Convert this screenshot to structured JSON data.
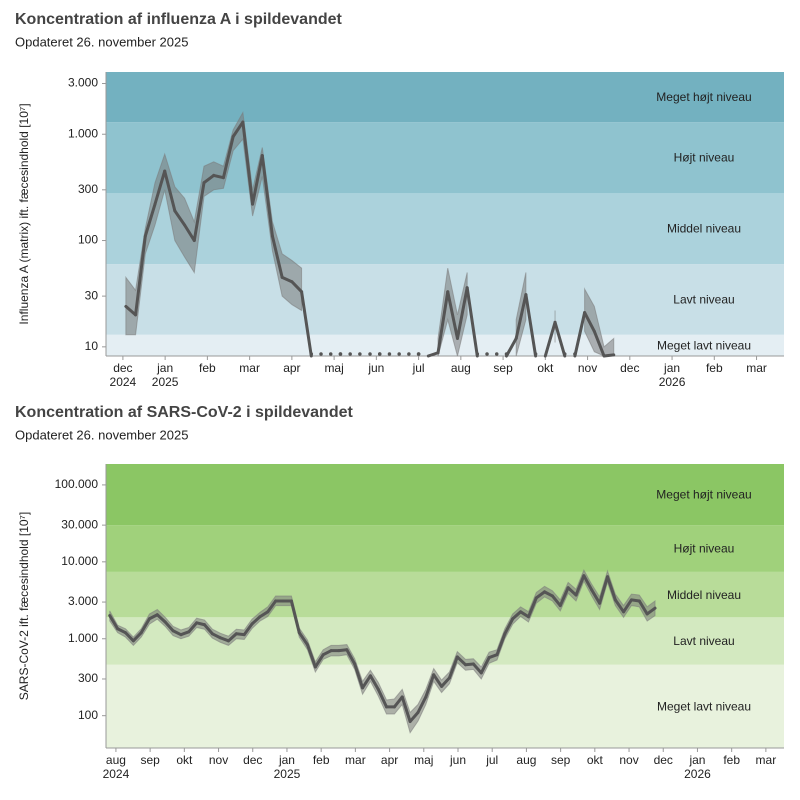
{
  "chart_data": [
    {
      "type": "line",
      "title": "Koncentration af influenza A i spildevandet",
      "subtitle": "Opdateret 26. november 2025",
      "ylabel": "Influenza A (matrix) ift. fæcesindhold [10⁷]",
      "log_y": true,
      "ylim": [
        8.2,
        3850
      ],
      "yticks": [
        10,
        30,
        100,
        300,
        {
          "value": 1000,
          "label": "1.000"
        },
        {
          "value": 3000,
          "label": "3.000"
        }
      ],
      "xlim": [
        -0.4,
        15.65
      ],
      "xticks": [
        {
          "value": 0,
          "label": "dec",
          "sublabel": "2024"
        },
        {
          "value": 1,
          "label": "jan",
          "sublabel": "2025"
        },
        {
          "value": 2,
          "label": "feb"
        },
        {
          "value": 3,
          "label": "mar"
        },
        {
          "value": 4,
          "label": "apr"
        },
        {
          "value": 5,
          "label": "maj"
        },
        {
          "value": 6,
          "label": "jun"
        },
        {
          "value": 7,
          "label": "jul"
        },
        {
          "value": 8,
          "label": "aug"
        },
        {
          "value": 9,
          "label": "sep"
        },
        {
          "value": 10,
          "label": "okt"
        },
        {
          "value": 11,
          "label": "nov"
        },
        {
          "value": 12,
          "label": "dec"
        },
        {
          "value": 13,
          "label": "jan",
          "sublabel": "2026"
        },
        {
          "value": 14,
          "label": "feb"
        },
        {
          "value": 15,
          "label": "mar"
        }
      ],
      "band_limits": [
        13,
        60,
        280,
        1300
      ],
      "bands": [
        {
          "label": "Meget lavt niveau",
          "color": "#e4eef3"
        },
        {
          "label": "Lavt niveau",
          "color": "#c8dfe7"
        },
        {
          "label": "Middel niveau",
          "color": "#abd2dc"
        },
        {
          "label": "Højt niveau",
          "color": "#8fc3cf"
        },
        {
          "label": "Meget højt niveau",
          "color": "#73b1c0"
        }
      ],
      "x": [
        0.07,
        0.3,
        0.53,
        0.76,
        0.99,
        1.23,
        1.46,
        1.69,
        1.92,
        2.15,
        2.38,
        2.61,
        2.84,
        3.07,
        3.3,
        3.54,
        3.77,
        4.0,
        4.23,
        4.46,
        4.69,
        4.92,
        5.15,
        5.38,
        5.61,
        5.85,
        6.08,
        6.31,
        6.54,
        6.77,
        7.0,
        7.23,
        7.46,
        7.69,
        7.92,
        8.15,
        8.39,
        8.62,
        8.85,
        9.08,
        9.31,
        9.54,
        9.77,
        10.0,
        10.23,
        10.46,
        10.7,
        10.93,
        11.16,
        11.39,
        11.62
      ],
      "series": [
        {
          "color": "#555555",
          "ci_color": "#7a7a7a",
          "values": [
            24,
            20,
            110,
            220,
            450,
            190,
            140,
            100,
            350,
            410,
            390,
            950,
            1300,
            220,
            630,
            110,
            45,
            41,
            33,
            8.2,
            8.2,
            8.2,
            8.2,
            8.2,
            8.2,
            8.2,
            8.2,
            8.2,
            8.2,
            8.2,
            8.2,
            8.2,
            8.8,
            33,
            12,
            36,
            8.2,
            8.2,
            8.2,
            8.2,
            12,
            31,
            8.2,
            8.2,
            17,
            8.2,
            8.2,
            21,
            14,
            8.2,
            8.4
          ],
          "lower": [
            13,
            13,
            75,
            140,
            300,
            100,
            70,
            50,
            260,
            300,
            310,
            700,
            900,
            170,
            400,
            80,
            30,
            25,
            22,
            null,
            null,
            null,
            null,
            null,
            null,
            null,
            null,
            null,
            null,
            null,
            null,
            null,
            8.2,
            18,
            8.2,
            20,
            null,
            null,
            null,
            null,
            8.2,
            18,
            null,
            null,
            11,
            null,
            null,
            14,
            9,
            8.2,
            8.2
          ],
          "upper": [
            45,
            34,
            130,
            350,
            650,
            320,
            250,
            150,
            500,
            550,
            500,
            1100,
            1600,
            300,
            750,
            150,
            75,
            65,
            55,
            null,
            null,
            null,
            null,
            null,
            null,
            null,
            null,
            null,
            null,
            null,
            null,
            null,
            12,
            55,
            20,
            50,
            null,
            null,
            null,
            null,
            18,
            50,
            null,
            null,
            22,
            null,
            null,
            35,
            24,
            10,
            12
          ]
        }
      ]
    },
    {
      "type": "line",
      "title": "Koncentration af SARS-CoV-2 i spildevandet",
      "subtitle": "Opdateret 26. november 2025",
      "ylabel": "SARS-CoV-2 ift. fæcesindhold [10⁷]",
      "log_y": true,
      "ylim": [
        38,
        187000
      ],
      "yticks": [
        100,
        300,
        {
          "value": 1000,
          "label": "1.000"
        },
        {
          "value": 3000,
          "label": "3.000"
        },
        {
          "value": 10000,
          "label": "10.000"
        },
        {
          "value": 30000,
          "label": "30.000"
        },
        {
          "value": 100000,
          "label": "100.000"
        }
      ],
      "xlim": [
        -0.29,
        19.53
      ],
      "xticks": [
        {
          "value": 0,
          "label": "aug",
          "sublabel": "2024"
        },
        {
          "value": 1,
          "label": "sep"
        },
        {
          "value": 2,
          "label": "okt"
        },
        {
          "value": 3,
          "label": "nov"
        },
        {
          "value": 4,
          "label": "dec"
        },
        {
          "value": 5,
          "label": "jan",
          "sublabel": "2025"
        },
        {
          "value": 6,
          "label": "feb"
        },
        {
          "value": 7,
          "label": "mar"
        },
        {
          "value": 8,
          "label": "apr"
        },
        {
          "value": 9,
          "label": "maj"
        },
        {
          "value": 10,
          "label": "jun"
        },
        {
          "value": 11,
          "label": "jul"
        },
        {
          "value": 12,
          "label": "aug"
        },
        {
          "value": 13,
          "label": "sep"
        },
        {
          "value": 14,
          "label": "okt"
        },
        {
          "value": 15,
          "label": "nov"
        },
        {
          "value": 16,
          "label": "dec"
        },
        {
          "value": 17,
          "label": "jan",
          "sublabel": "2026"
        },
        {
          "value": 18,
          "label": "feb"
        },
        {
          "value": 19,
          "label": "mar"
        }
      ],
      "band_limits": [
        460,
        1900,
        7400,
        30000
      ],
      "bands": [
        {
          "label": "Meget lavt niveau",
          "color": "#e8f2dd"
        },
        {
          "label": "Lavt niveau",
          "color": "#d3e9c0"
        },
        {
          "label": "Middel niveau",
          "color": "#b8dc99"
        },
        {
          "label": "Højt niveau",
          "color": "#a0d17b"
        },
        {
          "label": "Meget højt niveau",
          "color": "#8bc664"
        }
      ],
      "x": [
        -0.18,
        0.05,
        0.28,
        0.51,
        0.74,
        0.98,
        1.21,
        1.44,
        1.67,
        1.9,
        2.13,
        2.36,
        2.59,
        2.82,
        3.05,
        3.29,
        3.52,
        3.75,
        3.98,
        4.21,
        4.44,
        4.67,
        4.9,
        5.13,
        5.36,
        5.6,
        5.83,
        6.06,
        6.29,
        6.52,
        6.75,
        6.98,
        7.21,
        7.44,
        7.67,
        7.91,
        8.14,
        8.37,
        8.6,
        8.83,
        9.06,
        9.29,
        9.52,
        9.75,
        9.98,
        10.22,
        10.45,
        10.68,
        10.91,
        11.14,
        11.37,
        11.6,
        11.83,
        12.06,
        12.29,
        12.53,
        12.76,
        12.99,
        13.22,
        13.45,
        13.68,
        13.91,
        14.14,
        14.37,
        14.6,
        14.84,
        15.07,
        15.3,
        15.53,
        15.76
      ],
      "series": [
        {
          "color": "#555555",
          "ci_color": "#7a7a7a",
          "values": [
            2000,
            1350,
            1200,
            940,
            1200,
            1820,
            2050,
            1650,
            1270,
            1130,
            1230,
            1610,
            1520,
            1160,
            1030,
            940,
            1160,
            1130,
            1560,
            1930,
            2240,
            3100,
            3100,
            3100,
            1200,
            835,
            430,
            620,
            700,
            700,
            720,
            470,
            230,
            330,
            220,
            130,
            130,
            175,
            84,
            110,
            175,
            340,
            240,
            310,
            580,
            460,
            470,
            360,
            570,
            620,
            1160,
            1820,
            2240,
            1930,
            3400,
            4070,
            3600,
            2700,
            4600,
            3700,
            6600,
            4300,
            2900,
            6400,
            3200,
            2240,
            3200,
            3100,
            2100,
            2500
          ],
          "lower": [
            1700,
            1200,
            1050,
            820,
            1050,
            1550,
            1800,
            1450,
            1100,
            1000,
            1080,
            1400,
            1330,
            1020,
            900,
            820,
            1000,
            980,
            1360,
            1700,
            1950,
            2700,
            2700,
            2700,
            1050,
            720,
            370,
            540,
            600,
            600,
            620,
            400,
            190,
            280,
            180,
            105,
            105,
            140,
            60,
            85,
            140,
            280,
            200,
            260,
            490,
            390,
            400,
            300,
            480,
            530,
            1000,
            1550,
            1950,
            1650,
            2900,
            3500,
            3100,
            2300,
            3900,
            3100,
            5600,
            3600,
            2400,
            5400,
            2700,
            1900,
            2700,
            2600,
            1700,
            2000
          ],
          "upper": [
            2300,
            1500,
            1350,
            1050,
            1350,
            2100,
            2400,
            1900,
            1450,
            1300,
            1400,
            1850,
            1750,
            1330,
            1180,
            1080,
            1330,
            1300,
            1800,
            2200,
            2600,
            3600,
            3600,
            3600,
            1380,
            960,
            500,
            720,
            820,
            820,
            840,
            550,
            280,
            390,
            270,
            160,
            165,
            220,
            110,
            140,
            220,
            410,
            290,
            370,
            680,
            540,
            550,
            430,
            670,
            720,
            1350,
            2100,
            2600,
            2250,
            4000,
            4800,
            4200,
            3200,
            5400,
            4400,
            7800,
            5100,
            3500,
            7600,
            3800,
            2700,
            3800,
            3700,
            2600,
            3100
          ]
        }
      ]
    }
  ]
}
